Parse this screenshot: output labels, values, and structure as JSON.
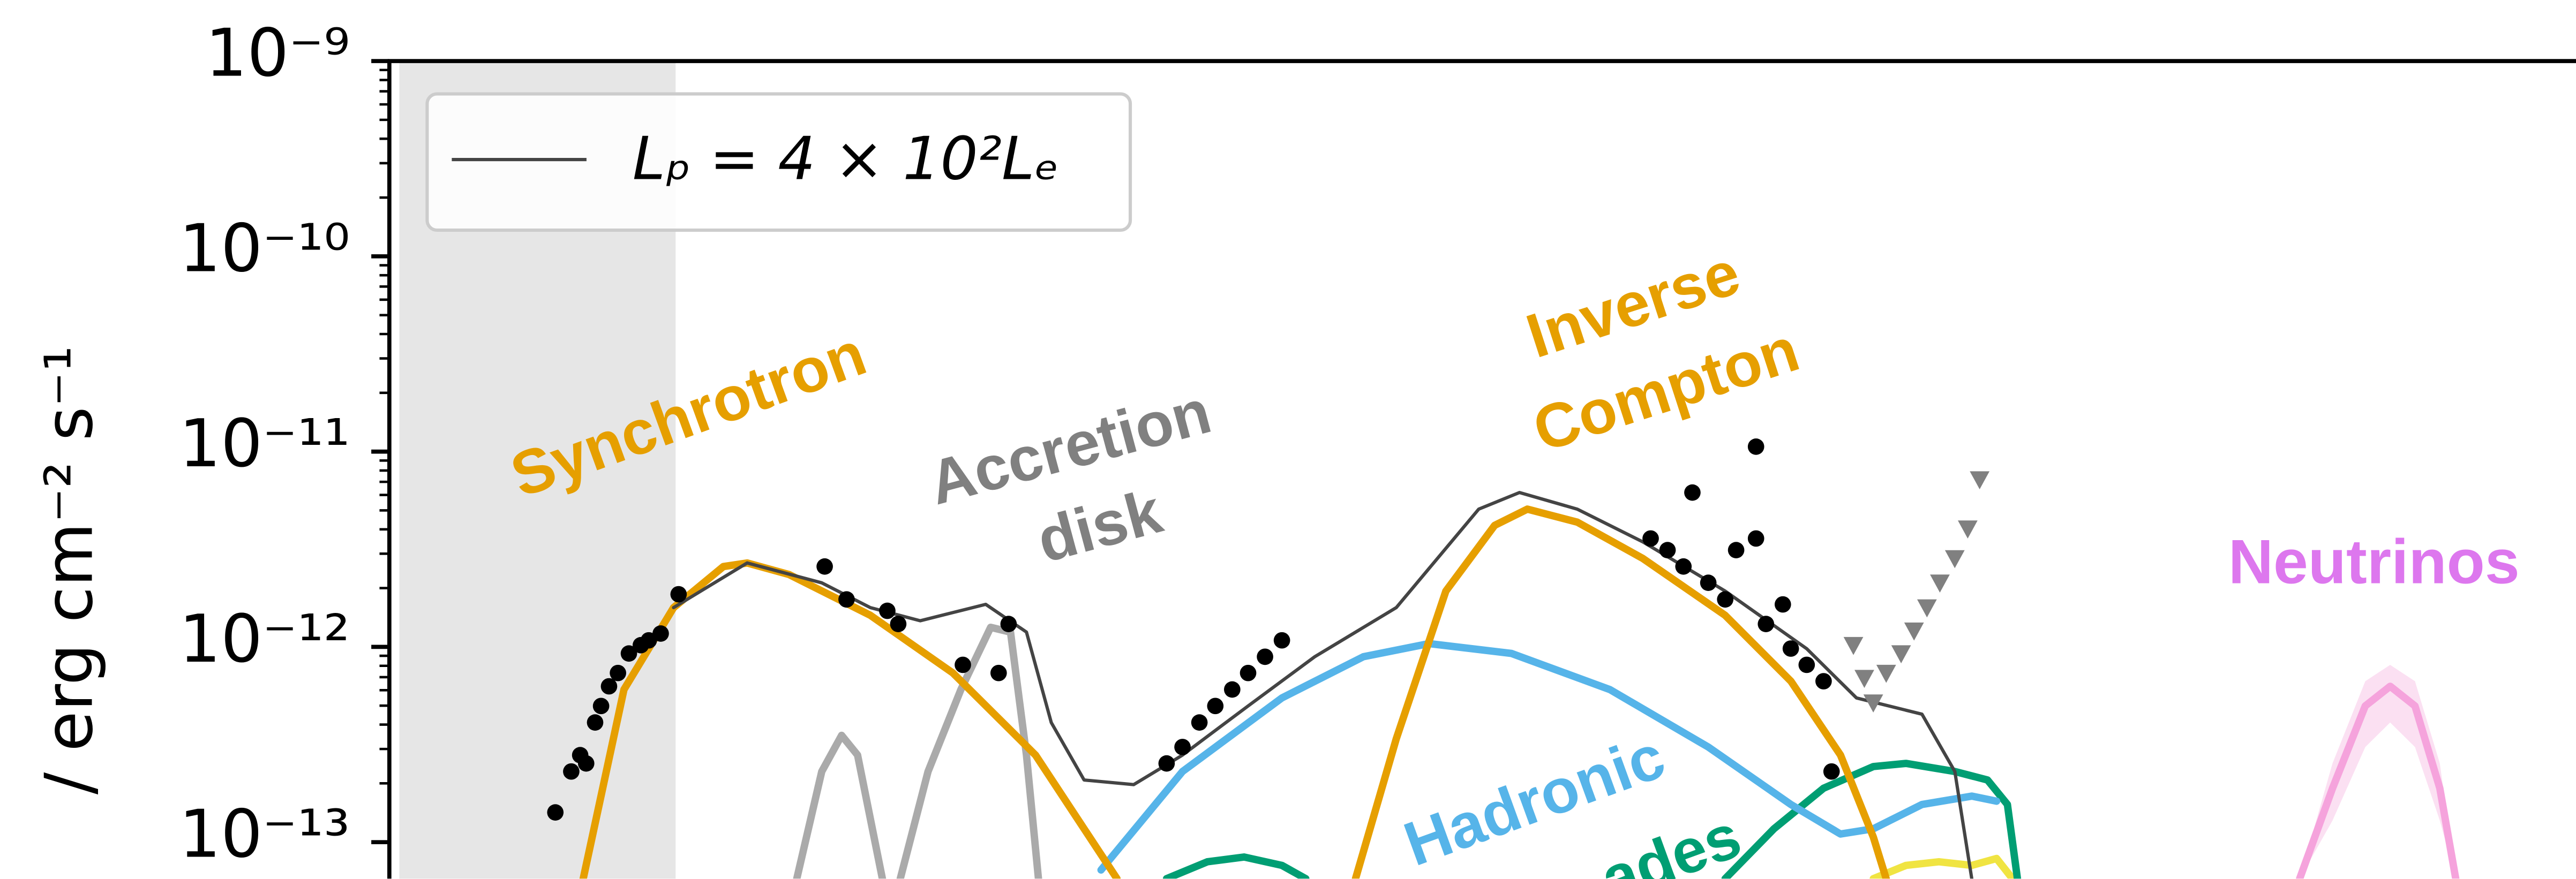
{
  "chart_data": {
    "type": "line",
    "ylabel": "/ erg cm⁻² s⁻¹",
    "yscale": "log",
    "ylim": [
      6.5e-14,
      1e-09
    ],
    "yticks": [
      {
        "value": 1e-09,
        "label": "10⁻⁹"
      },
      {
        "value": 1e-10,
        "label": "10⁻¹⁰"
      },
      {
        "value": 1e-11,
        "label": "10⁻¹¹"
      },
      {
        "value": 1e-12,
        "label": "10⁻¹²"
      },
      {
        "value": 1e-13,
        "label": "10⁻¹³"
      }
    ],
    "xlim": [
      8,
      30
    ],
    "shade_x": [
      8.1,
      10.88
    ],
    "legend": "upper left",
    "series": [
      {
        "name": "Lₚ = 4 × 10²Lₑ",
        "color": "#444444",
        "width": 2,
        "x": [
          10.86,
          11.6,
          12.35,
          12.84,
          13.34,
          14.0,
          14.41,
          14.66,
          14.99,
          15.49,
          15.98,
          16.64,
          17.31,
          18.13,
          18.96,
          19.37,
          19.95,
          20.61,
          21.44,
          22.26,
          22.76,
          23.42,
          23.75,
          23.92
        ],
        "values": [
          1.59e-12,
          2.69e-12,
          2.13e-12,
          1.59e-12,
          1.36e-12,
          1.65e-12,
          1.19e-12,
          4.1e-13,
          2.08e-13,
          1.97e-13,
          2.79e-13,
          4.98e-13,
          8.9e-13,
          1.59e-12,
          5.08e-12,
          6.17e-12,
          5.08e-12,
          3.45e-12,
          1.93e-12,
          9.8e-13,
          5.48e-13,
          4.52e-13,
          2.3e-13,
          6.5e-14
        ]
      },
      {
        "color": "#e69f00",
        "width": 4.5,
        "x": [
          9.95,
          10.36,
          10.86,
          11.36,
          11.6,
          12.02,
          12.84,
          13.67,
          14.5,
          15.32
        ],
        "values": [
          6.5e-14,
          6.05e-13,
          1.59e-12,
          2.58e-12,
          2.69e-12,
          2.35e-12,
          1.45e-12,
          7.35e-13,
          2.79e-13,
          6.5e-14
        ]
      },
      {
        "color": "#aaaaaa",
        "width": 4.5,
        "x": [
          12.1,
          12.35,
          12.55,
          12.71,
          12.96,
          null,
          13.14,
          13.42,
          13.75,
          14.05,
          14.25,
          14.41,
          14.53
        ],
        "values": [
          6.5e-14,
          2.3e-13,
          3.52e-13,
          2.79e-13,
          6.5e-14,
          null,
          6.5e-14,
          2.3e-13,
          6.05e-13,
          1.26e-12,
          1.19e-12,
          2.79e-13,
          6.5e-14
        ]
      },
      {
        "color": "#e69f00",
        "width": 4.5,
        "x": [
          17.72,
          18.13,
          18.63,
          19.12,
          19.45,
          19.95,
          20.61,
          21.44,
          22.1,
          22.6,
          22.93,
          23.06
        ],
        "values": [
          6.5e-14,
          3.38e-13,
          1.93e-12,
          4.19e-12,
          5.08e-12,
          4.36e-12,
          2.84e-12,
          1.45e-12,
          6.67e-13,
          2.79e-13,
          1.06e-13,
          6.5e-14
        ]
      },
      {
        "color": "#56b4e9",
        "width": 4.5,
        "x": [
          15.16,
          15.98,
          16.98,
          17.8,
          18.46,
          19.29,
          20.28,
          21.27,
          22.1,
          22.6,
          22.93,
          23.42,
          23.92,
          24.17
        ],
        "values": [
          7.2e-14,
          2.3e-13,
          5.48e-13,
          8.9e-13,
          1.04e-12,
          9.25e-13,
          6.05e-13,
          3.07e-13,
          1.56e-13,
          1.1e-13,
          1.17e-13,
          1.56e-13,
          1.72e-13,
          1.62e-13
        ]
      },
      {
        "color": "#009e73",
        "width": 4.5,
        "x": [
          15.82,
          16.23,
          16.6,
          16.98,
          17.22,
          null,
          21.44,
          21.93,
          22.43,
          22.93,
          23.26,
          23.75,
          24.08,
          24.28,
          24.38
        ],
        "values": [
          6.5e-14,
          7.93e-14,
          8.4e-14,
          7.6e-14,
          6.5e-14,
          null,
          6.5e-14,
          1.17e-13,
          1.89e-13,
          2.44e-13,
          2.53e-13,
          2.3e-13,
          2.08e-13,
          1.56e-13,
          6.5e-14
        ]
      },
      {
        "color": "#f0e442",
        "width": 4.5,
        "x": [
          22.93,
          23.26,
          23.59,
          23.92,
          24.17,
          24.33
        ],
        "values": [
          6.5e-14,
          7.6e-14,
          7.93e-14,
          7.6e-14,
          8.24e-14,
          6.5e-14
        ]
      },
      {
        "color": "#f5a3dc",
        "width": 4.5,
        "band_color": "#fbe0f2",
        "x": [
          27.22,
          27.55,
          27.88,
          28.13,
          28.38,
          28.63,
          28.79
        ],
        "values": [
          6.5e-14,
          1.89e-13,
          4.98e-13,
          6.28e-13,
          4.98e-13,
          1.89e-13,
          6.5e-14
        ],
        "band_upper": [
          6.5e-14,
          2.53e-13,
          6.67e-13,
          8.09e-13,
          6.67e-13,
          2.53e-13,
          6.5e-14
        ],
        "band_lower": [
          6.5e-14,
          1.29e-13,
          3.07e-13,
          4.1e-13,
          3.07e-13,
          1.29e-13,
          6.5e-14
        ]
      }
    ],
    "points": {
      "color": "#000000",
      "x": [
        9.67,
        9.83,
        9.92,
        9.98,
        10.07,
        10.13,
        10.21,
        10.3,
        10.41,
        10.53,
        10.61,
        10.73,
        10.91,
        12.38,
        12.6,
        13.01,
        13.12,
        13.77,
        14.13,
        14.23,
        15.82,
        15.98,
        16.15,
        16.31,
        16.48,
        16.64,
        16.81,
        16.98,
        20.69,
        20.86,
        21.02,
        21.11,
        21.27,
        21.44,
        21.55,
        21.75,
        21.75,
        21.85,
        22.02,
        22.1,
        22.26,
        22.43,
        22.51
      ],
      "values": [
        1.42e-13,
        2.3e-13,
        2.79e-13,
        2.53e-13,
        4.1e-13,
        4.98e-13,
        6.28e-13,
        7.35e-13,
        9.25e-13,
        1.02e-12,
        1.08e-12,
        1.17e-12,
        1.86e-12,
        2.58e-12,
        1.75e-12,
        1.53e-12,
        1.31e-12,
        8.09e-13,
        7.35e-13,
        1.31e-12,
        2.53e-13,
        3.07e-13,
        4.1e-13,
        4.98e-13,
        6.05e-13,
        7.35e-13,
        8.9e-13,
        1.08e-12,
        3.59e-12,
        3.13e-12,
        2.58e-12,
        6.17e-12,
        2.13e-12,
        1.75e-12,
        3.13e-12,
        3.59e-12,
        1.06e-11,
        1.31e-12,
        1.65e-12,
        9.8e-13,
        8.09e-13,
        6.67e-13,
        2.3e-13
      ]
    },
    "upper_limits": {
      "color": "#808080",
      "x": [
        22.73,
        22.84,
        22.93,
        23.06,
        23.21,
        23.34,
        23.47,
        23.6,
        23.75,
        23.88,
        24.0
      ],
      "values": [
        1.02e-12,
        6.92e-13,
        5.18e-13,
        7.35e-13,
        9.25e-13,
        1.21e-12,
        1.59e-12,
        2.13e-12,
        2.84e-12,
        4.03e-12,
        7.2e-12
      ]
    },
    "annotations": [
      {
        "text": "Synchrotron",
        "color": "#e69f00"
      },
      {
        "text": "Accretion",
        "color": "#808080"
      },
      {
        "text": "disk",
        "color": "#808080"
      },
      {
        "text": "Inverse",
        "color": "#e69f00"
      },
      {
        "text": "Compton",
        "color": "#e69f00"
      },
      {
        "text": "Hadronic",
        "color": "#56b4e9"
      },
      {
        "text": "ades",
        "color": "#009e73"
      },
      {
        "text": "Neutrinos",
        "color": "#dd77ee"
      }
    ]
  }
}
